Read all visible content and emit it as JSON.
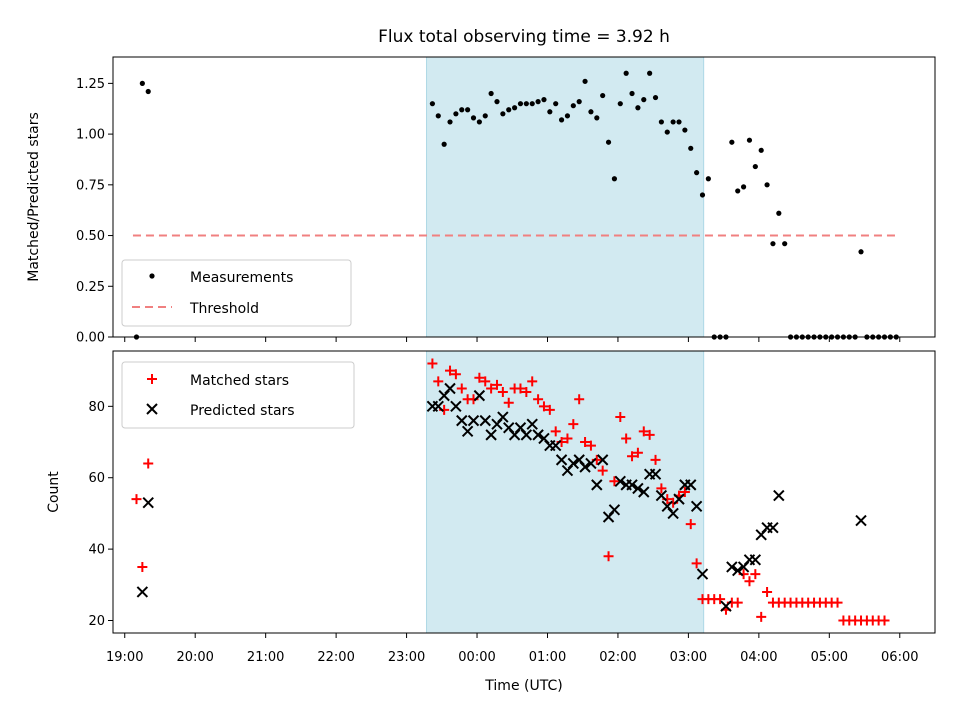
{
  "title": "Flux total observing time = 3.92 h",
  "xlabel": "Time (UTC)",
  "colors": {
    "measurement": "#000000",
    "threshold": "#f08080",
    "matched": "#ff0000",
    "predicted": "#000000",
    "highlight_fill": "#add8e6"
  },
  "chart_data": [
    {
      "type": "scatter",
      "ylabel": "Matched/Predicted stars",
      "xlim": [
        "18:50",
        "06:30"
      ],
      "ylim": [
        0,
        1.38
      ],
      "y_ticks": [
        0.0,
        0.25,
        0.5,
        0.75,
        1.0,
        1.25
      ],
      "y_tick_labels": [
        "0.00",
        "0.25",
        "0.50",
        "0.75",
        "1.00",
        "1.25"
      ],
      "highlight": {
        "start": "23:17",
        "end": "03:13"
      },
      "legend": {
        "position": "lower left",
        "entries": [
          "Measurements",
          "Threshold"
        ]
      },
      "threshold": {
        "name": "Threshold",
        "y": 0.5,
        "x_start": "19:07",
        "x_end": "05:58"
      },
      "series": [
        {
          "name": "Measurements",
          "marker": "dot",
          "points": [
            [
              "19:10",
              0.0
            ],
            [
              "19:15",
              1.25
            ],
            [
              "19:20",
              1.21
            ],
            [
              "23:22",
              1.15
            ],
            [
              "23:27",
              1.09
            ],
            [
              "23:32",
              0.95
            ],
            [
              "23:37",
              1.06
            ],
            [
              "23:42",
              1.1
            ],
            [
              "23:47",
              1.12
            ],
            [
              "23:52",
              1.12
            ],
            [
              "23:57",
              1.08
            ],
            [
              "00:02",
              1.06
            ],
            [
              "00:07",
              1.09
            ],
            [
              "00:12",
              1.2
            ],
            [
              "00:17",
              1.16
            ],
            [
              "00:22",
              1.1
            ],
            [
              "00:27",
              1.12
            ],
            [
              "00:32",
              1.13
            ],
            [
              "00:37",
              1.15
            ],
            [
              "00:42",
              1.15
            ],
            [
              "00:47",
              1.15
            ],
            [
              "00:52",
              1.16
            ],
            [
              "00:57",
              1.17
            ],
            [
              "01:02",
              1.11
            ],
            [
              "01:07",
              1.15
            ],
            [
              "01:12",
              1.07
            ],
            [
              "01:17",
              1.09
            ],
            [
              "01:22",
              1.14
            ],
            [
              "01:27",
              1.16
            ],
            [
              "01:32",
              1.26
            ],
            [
              "01:37",
              1.11
            ],
            [
              "01:42",
              1.08
            ],
            [
              "01:47",
              1.19
            ],
            [
              "01:52",
              0.96
            ],
            [
              "01:57",
              0.78
            ],
            [
              "02:02",
              1.15
            ],
            [
              "02:07",
              1.3
            ],
            [
              "02:12",
              1.2
            ],
            [
              "02:17",
              1.13
            ],
            [
              "02:22",
              1.17
            ],
            [
              "02:27",
              1.3
            ],
            [
              "02:32",
              1.18
            ],
            [
              "02:37",
              1.06
            ],
            [
              "02:42",
              1.01
            ],
            [
              "02:47",
              1.06
            ],
            [
              "02:52",
              1.06
            ],
            [
              "02:57",
              1.02
            ],
            [
              "03:02",
              0.93
            ],
            [
              "03:07",
              0.81
            ],
            [
              "03:12",
              0.7
            ],
            [
              "03:17",
              0.78
            ],
            [
              "03:22",
              0.0
            ],
            [
              "03:27",
              0.0
            ],
            [
              "03:32",
              0.0
            ],
            [
              "03:37",
              0.96
            ],
            [
              "03:42",
              0.72
            ],
            [
              "03:47",
              0.74
            ],
            [
              "03:52",
              0.97
            ],
            [
              "03:57",
              0.84
            ],
            [
              "04:02",
              0.92
            ],
            [
              "04:07",
              0.75
            ],
            [
              "04:12",
              0.46
            ],
            [
              "04:17",
              0.61
            ],
            [
              "04:22",
              0.46
            ],
            [
              "04:27",
              0.0
            ],
            [
              "04:32",
              0.0
            ],
            [
              "04:37",
              0.0
            ],
            [
              "04:42",
              0.0
            ],
            [
              "04:47",
              0.0
            ],
            [
              "04:52",
              0.0
            ],
            [
              "04:57",
              0.0
            ],
            [
              "05:02",
              0.0
            ],
            [
              "05:07",
              0.0
            ],
            [
              "05:12",
              0.0
            ],
            [
              "05:17",
              0.0
            ],
            [
              "05:22",
              0.0
            ],
            [
              "05:27",
              0.42
            ],
            [
              "05:32",
              0.0
            ],
            [
              "05:37",
              0.0
            ],
            [
              "05:42",
              0.0
            ],
            [
              "05:47",
              0.0
            ],
            [
              "05:52",
              0.0
            ],
            [
              "05:57",
              0.0
            ]
          ]
        }
      ]
    },
    {
      "type": "scatter",
      "ylabel": "Count",
      "xlim": [
        "18:50",
        "06:30"
      ],
      "ylim": [
        16.5,
        95.5
      ],
      "y_ticks": [
        20,
        40,
        60,
        80
      ],
      "y_tick_labels": [
        "20",
        "40",
        "60",
        "80"
      ],
      "x_ticks": [
        "19:00",
        "20:00",
        "21:00",
        "22:00",
        "23:00",
        "00:00",
        "01:00",
        "02:00",
        "03:00",
        "04:00",
        "05:00",
        "06:00"
      ],
      "highlight": {
        "start": "23:17",
        "end": "03:13"
      },
      "legend": {
        "position": "upper left",
        "entries": [
          "Matched stars",
          "Predicted stars"
        ]
      },
      "series": [
        {
          "name": "Matched stars",
          "marker": "plus",
          "points": [
            [
              "19:10",
              54
            ],
            [
              "19:15",
              35
            ],
            [
              "19:20",
              64
            ],
            [
              "23:22",
              92
            ],
            [
              "23:27",
              87
            ],
            [
              "23:32",
              79
            ],
            [
              "23:37",
              90
            ],
            [
              "23:42",
              89
            ],
            [
              "23:47",
              85
            ],
            [
              "23:52",
              82
            ],
            [
              "23:57",
              82
            ],
            [
              "00:02",
              88
            ],
            [
              "00:07",
              87
            ],
            [
              "00:12",
              85
            ],
            [
              "00:17",
              86
            ],
            [
              "00:22",
              84
            ],
            [
              "00:27",
              81
            ],
            [
              "00:32",
              85
            ],
            [
              "00:37",
              85
            ],
            [
              "00:42",
              84
            ],
            [
              "00:47",
              87
            ],
            [
              "00:52",
              82
            ],
            [
              "00:57",
              80
            ],
            [
              "01:02",
              79
            ],
            [
              "01:07",
              73
            ],
            [
              "01:12",
              70
            ],
            [
              "01:17",
              71
            ],
            [
              "01:22",
              75
            ],
            [
              "01:27",
              82
            ],
            [
              "01:32",
              70
            ],
            [
              "01:37",
              69
            ],
            [
              "01:42",
              65
            ],
            [
              "01:47",
              62
            ],
            [
              "01:52",
              38
            ],
            [
              "01:57",
              59
            ],
            [
              "02:02",
              77
            ],
            [
              "02:07",
              71
            ],
            [
              "02:12",
              66
            ],
            [
              "02:17",
              67
            ],
            [
              "02:22",
              73
            ],
            [
              "02:27",
              72
            ],
            [
              "02:32",
              65
            ],
            [
              "02:37",
              57
            ],
            [
              "02:42",
              54
            ],
            [
              "02:47",
              53
            ],
            [
              "02:52",
              55
            ],
            [
              "02:57",
              56
            ],
            [
              "03:02",
              47
            ],
            [
              "03:07",
              36
            ],
            [
              "03:12",
              26
            ],
            [
              "03:17",
              26
            ],
            [
              "03:22",
              26
            ],
            [
              "03:27",
              26
            ],
            [
              "03:32",
              23
            ],
            [
              "03:37",
              25
            ],
            [
              "03:42",
              25
            ],
            [
              "03:47",
              33
            ],
            [
              "03:52",
              31
            ],
            [
              "03:57",
              33
            ],
            [
              "04:02",
              21
            ],
            [
              "04:07",
              28
            ],
            [
              "04:12",
              25
            ],
            [
              "04:17",
              25
            ],
            [
              "04:22",
              25
            ],
            [
              "04:27",
              25
            ],
            [
              "04:32",
              25
            ],
            [
              "04:37",
              25
            ],
            [
              "04:42",
              25
            ],
            [
              "04:47",
              25
            ],
            [
              "04:52",
              25
            ],
            [
              "04:57",
              25
            ],
            [
              "05:02",
              25
            ],
            [
              "05:07",
              25
            ],
            [
              "05:12",
              20
            ],
            [
              "05:17",
              20
            ],
            [
              "05:22",
              20
            ],
            [
              "05:27",
              20
            ],
            [
              "05:32",
              20
            ],
            [
              "05:37",
              20
            ],
            [
              "05:42",
              20
            ],
            [
              "05:47",
              20
            ]
          ]
        },
        {
          "name": "Predicted stars",
          "marker": "x",
          "points": [
            [
              "19:15",
              28
            ],
            [
              "19:20",
              53
            ],
            [
              "23:22",
              80
            ],
            [
              "23:27",
              80
            ],
            [
              "23:32",
              83
            ],
            [
              "23:37",
              85
            ],
            [
              "23:42",
              80
            ],
            [
              "23:47",
              76
            ],
            [
              "23:52",
              73
            ],
            [
              "23:57",
              76
            ],
            [
              "00:02",
              83
            ],
            [
              "00:07",
              76
            ],
            [
              "00:12",
              72
            ],
            [
              "00:17",
              75
            ],
            [
              "00:22",
              77
            ],
            [
              "00:27",
              74
            ],
            [
              "00:32",
              72
            ],
            [
              "00:37",
              74
            ],
            [
              "00:42",
              72
            ],
            [
              "00:47",
              75
            ],
            [
              "00:52",
              72
            ],
            [
              "00:57",
              71
            ],
            [
              "01:02",
              69
            ],
            [
              "01:07",
              69
            ],
            [
              "01:12",
              65
            ],
            [
              "01:17",
              62
            ],
            [
              "01:22",
              64
            ],
            [
              "01:27",
              65
            ],
            [
              "01:32",
              63
            ],
            [
              "01:37",
              64
            ],
            [
              "01:42",
              58
            ],
            [
              "01:47",
              65
            ],
            [
              "01:52",
              49
            ],
            [
              "01:57",
              51
            ],
            [
              "02:02",
              59
            ],
            [
              "02:07",
              58
            ],
            [
              "02:12",
              58
            ],
            [
              "02:17",
              57
            ],
            [
              "02:22",
              56
            ],
            [
              "02:27",
              61
            ],
            [
              "02:32",
              61
            ],
            [
              "02:37",
              55
            ],
            [
              "02:42",
              52
            ],
            [
              "02:47",
              50
            ],
            [
              "02:52",
              54
            ],
            [
              "02:57",
              58
            ],
            [
              "03:02",
              58
            ],
            [
              "03:07",
              52
            ],
            [
              "03:12",
              33
            ],
            [
              "03:32",
              24
            ],
            [
              "03:37",
              35
            ],
            [
              "03:42",
              34
            ],
            [
              "03:47",
              35
            ],
            [
              "03:52",
              37
            ],
            [
              "03:57",
              37
            ],
            [
              "04:02",
              44
            ],
            [
              "04:07",
              46
            ],
            [
              "04:12",
              46
            ],
            [
              "04:17",
              55
            ],
            [
              "05:27",
              48
            ]
          ]
        }
      ]
    }
  ]
}
